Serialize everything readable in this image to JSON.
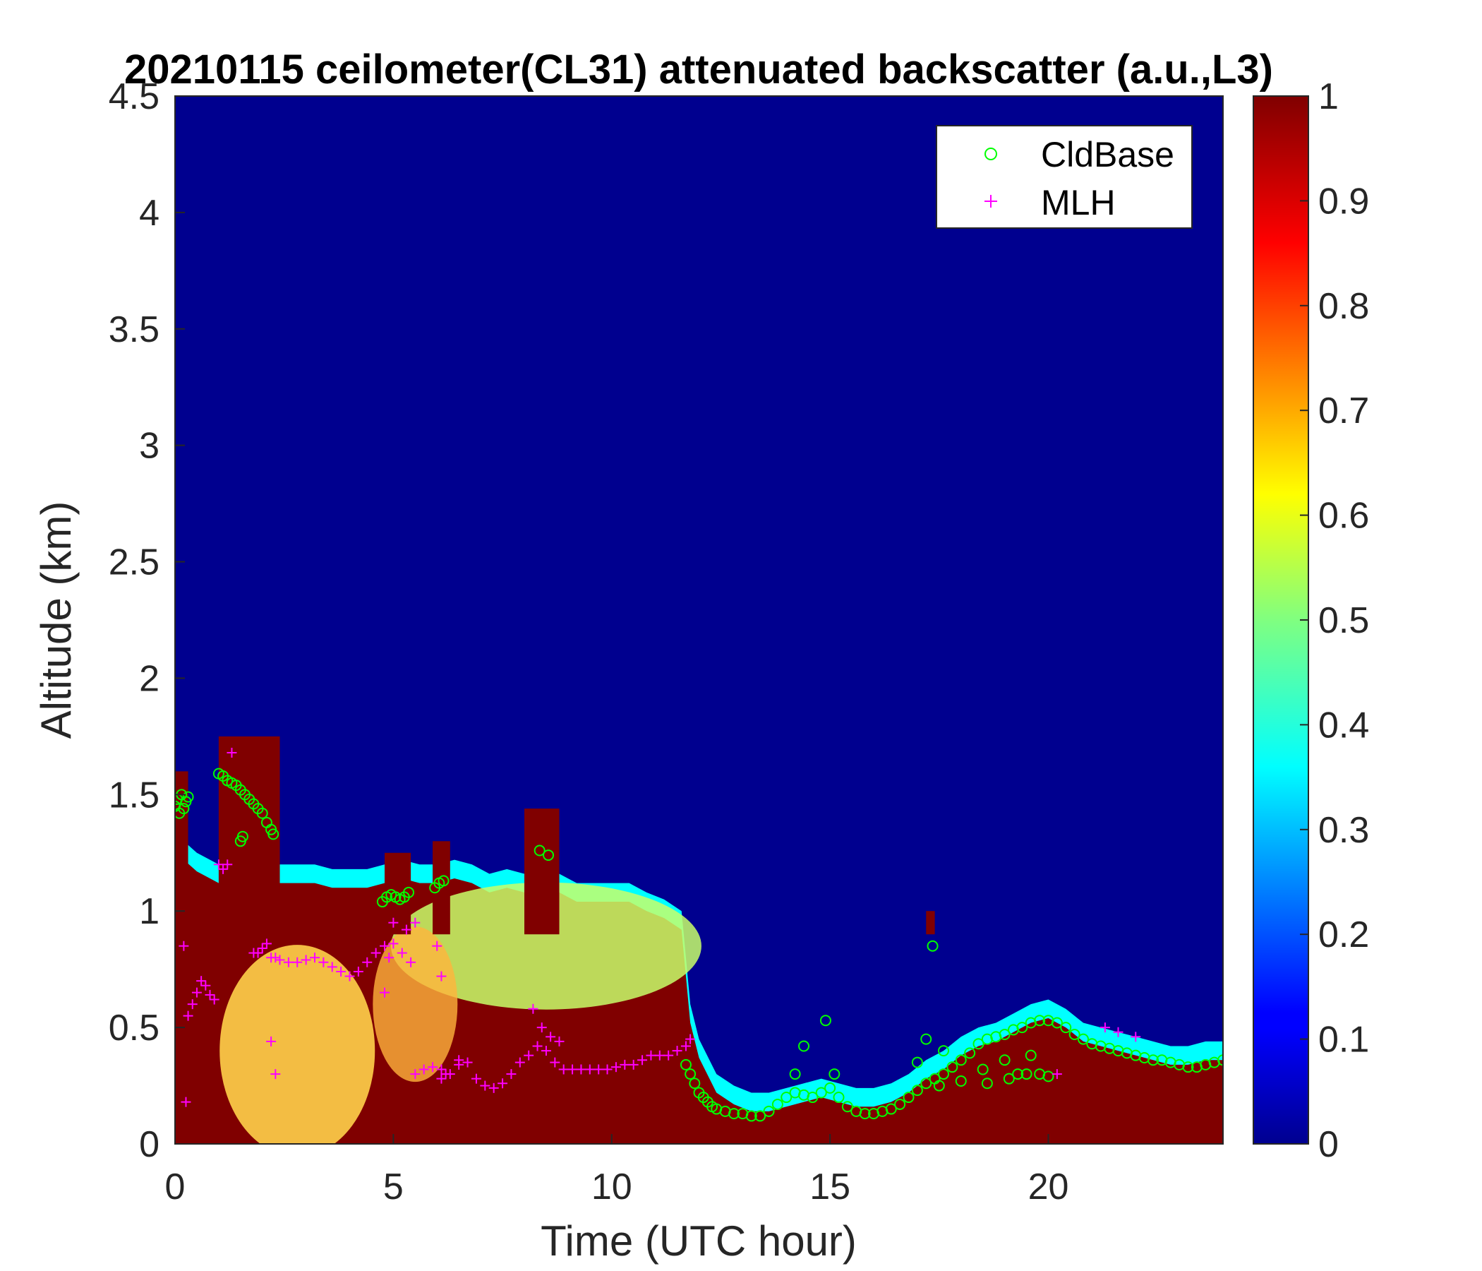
{
  "chart_data": {
    "type": "heatmap",
    "title": "20210115 ceilometer(CL31) attenuated backscatter (a.u.,L3)",
    "xlabel": "Time (UTC hour)",
    "ylabel": "Altitude (km)",
    "xlim": [
      0,
      24
    ],
    "ylim": [
      0,
      4.5
    ],
    "xticks": [
      "0",
      "5",
      "10",
      "15",
      "20"
    ],
    "yticks": [
      "0",
      "0.5",
      "1",
      "1.5",
      "2",
      "2.5",
      "3",
      "3.5",
      "4",
      "4.5"
    ],
    "colorbar": {
      "colormap": "jet",
      "range": [
        0,
        1
      ],
      "ticks": [
        "0",
        "0.1",
        "0.2",
        "0.3",
        "0.4",
        "0.5",
        "0.6",
        "0.7",
        "0.8",
        "0.9",
        "1"
      ]
    },
    "legend": {
      "placement": "top-right",
      "entries": [
        {
          "name": "CldBase",
          "marker": "circle",
          "color": "#00ff00"
        },
        {
          "name": "MLH",
          "marker": "plus",
          "color": "#ff00ff"
        }
      ]
    },
    "layer_top_km": {
      "x": [
        0,
        0.2,
        0.5,
        0.8,
        1.0,
        1.3,
        1.6,
        2.0,
        2.4,
        2.8,
        3.2,
        3.6,
        4.0,
        4.4,
        4.8,
        5.2,
        5.6,
        6.0,
        6.4,
        6.8,
        7.2,
        7.6,
        8.0,
        8.4,
        8.8,
        9.2,
        9.6,
        10.0,
        10.4,
        10.8,
        11.2,
        11.6,
        11.8,
        12.0,
        12.4,
        12.8,
        13.2,
        13.6,
        14.0,
        14.4,
        14.8,
        15.2,
        15.6,
        16.0,
        16.4,
        16.8,
        17.2,
        17.6,
        18.0,
        18.4,
        18.8,
        19.2,
        19.6,
        20.0,
        20.4,
        20.8,
        21.2,
        21.6,
        22.0,
        22.4,
        22.8,
        23.2,
        23.6,
        24.0
      ],
      "y": [
        1.3,
        1.3,
        1.25,
        1.22,
        1.2,
        1.22,
        1.22,
        1.22,
        1.2,
        1.2,
        1.2,
        1.18,
        1.18,
        1.18,
        1.2,
        1.22,
        1.2,
        1.2,
        1.22,
        1.2,
        1.16,
        1.18,
        1.16,
        1.16,
        1.16,
        1.12,
        1.12,
        1.12,
        1.12,
        1.08,
        1.05,
        1.0,
        0.6,
        0.45,
        0.3,
        0.25,
        0.22,
        0.22,
        0.24,
        0.26,
        0.28,
        0.26,
        0.24,
        0.24,
        0.26,
        0.3,
        0.36,
        0.4,
        0.46,
        0.5,
        0.52,
        0.56,
        0.6,
        0.62,
        0.58,
        0.52,
        0.5,
        0.48,
        0.46,
        0.44,
        0.42,
        0.42,
        0.44,
        0.44
      ]
    },
    "cloud_tops": [
      {
        "x0": 0,
        "x1": 0.3,
        "top": 1.6
      },
      {
        "x0": 1.0,
        "x1": 2.4,
        "top": 1.75
      },
      {
        "x0": 4.8,
        "x1": 5.4,
        "top": 1.25
      },
      {
        "x0": 5.9,
        "x1": 6.3,
        "top": 1.3
      },
      {
        "x0": 8.0,
        "x1": 8.8,
        "top": 1.44
      },
      {
        "x0": 17.2,
        "x1": 17.4,
        "top": 1.0
      }
    ],
    "series": [
      {
        "name": "CldBase",
        "x": [
          0.0,
          0.05,
          0.1,
          0.15,
          0.2,
          0.25,
          0.3,
          1.0,
          1.1,
          1.2,
          1.3,
          1.4,
          1.5,
          1.6,
          1.7,
          1.8,
          1.9,
          2.0,
          2.1,
          2.2,
          2.25,
          1.5,
          1.55,
          4.75,
          4.85,
          4.95,
          5.05,
          5.15,
          5.25,
          5.35,
          5.95,
          6.05,
          6.15,
          8.35,
          8.55,
          11.7,
          11.8,
          11.9,
          12.0,
          12.1,
          12.2,
          12.3,
          12.4,
          12.6,
          12.8,
          13.0,
          13.2,
          13.4,
          13.6,
          13.8,
          14.0,
          14.2,
          14.4,
          14.6,
          14.8,
          15.0,
          15.2,
          15.4,
          15.6,
          15.8,
          16.0,
          16.2,
          16.4,
          16.6,
          16.8,
          17.0,
          17.2,
          17.35,
          17.4,
          17.6,
          17.8,
          18.0,
          18.2,
          18.4,
          18.6,
          18.8,
          19.0,
          19.2,
          19.4,
          19.6,
          19.8,
          20.0,
          20.2,
          20.4,
          20.6,
          20.8,
          21.0,
          21.2,
          21.4,
          21.6,
          21.8,
          22.0,
          22.2,
          22.4,
          22.6,
          22.8,
          23.0,
          23.2,
          23.4,
          23.6,
          23.8,
          24.0,
          14.2,
          14.4,
          14.9,
          15.1,
          17.0,
          17.2,
          17.6,
          18.5,
          19.0,
          19.3,
          19.6,
          19.8,
          20.0,
          17.5,
          18.0,
          18.6,
          19.1,
          19.5
        ],
        "y": [
          1.45,
          1.48,
          1.42,
          1.5,
          1.44,
          1.47,
          1.49,
          1.59,
          1.58,
          1.56,
          1.55,
          1.54,
          1.52,
          1.5,
          1.48,
          1.46,
          1.44,
          1.42,
          1.38,
          1.35,
          1.33,
          1.3,
          1.32,
          1.04,
          1.06,
          1.07,
          1.06,
          1.05,
          1.06,
          1.08,
          1.1,
          1.12,
          1.13,
          1.26,
          1.24,
          0.34,
          0.3,
          0.26,
          0.22,
          0.2,
          0.18,
          0.16,
          0.15,
          0.14,
          0.13,
          0.13,
          0.12,
          0.12,
          0.14,
          0.17,
          0.2,
          0.22,
          0.21,
          0.2,
          0.22,
          0.24,
          0.2,
          0.16,
          0.14,
          0.13,
          0.13,
          0.14,
          0.15,
          0.17,
          0.2,
          0.23,
          0.26,
          0.85,
          0.28,
          0.3,
          0.33,
          0.36,
          0.39,
          0.43,
          0.45,
          0.46,
          0.47,
          0.49,
          0.5,
          0.52,
          0.53,
          0.53,
          0.52,
          0.5,
          0.47,
          0.45,
          0.43,
          0.42,
          0.41,
          0.4,
          0.39,
          0.38,
          0.37,
          0.36,
          0.36,
          0.35,
          0.34,
          0.33,
          0.33,
          0.34,
          0.35,
          0.36,
          0.3,
          0.42,
          0.53,
          0.3,
          0.35,
          0.45,
          0.4,
          0.32,
          0.36,
          0.3,
          0.38,
          0.3,
          0.29,
          0.25,
          0.27,
          0.26,
          0.28,
          0.3
        ]
      },
      {
        "name": "MLH",
        "x": [
          0.2,
          0.3,
          0.4,
          0.5,
          0.6,
          0.7,
          0.8,
          0.9,
          1.0,
          1.1,
          1.2,
          1.3,
          1.8,
          1.9,
          2.0,
          2.1,
          2.2,
          2.3,
          2.4,
          2.6,
          2.8,
          3.0,
          3.2,
          3.4,
          3.6,
          3.8,
          4.0,
          4.2,
          4.4,
          4.6,
          4.8,
          5.0,
          5.2,
          5.4,
          2.2,
          2.3,
          0.25,
          4.8,
          4.9,
          5.0,
          5.3,
          5.5,
          6.0,
          6.1,
          5.5,
          5.7,
          5.9,
          6.1,
          6.3,
          6.5,
          6.7,
          6.9,
          7.1,
          7.3,
          7.5,
          7.7,
          7.9,
          8.1,
          8.3,
          8.5,
          8.7,
          8.9,
          9.1,
          9.3,
          9.5,
          9.7,
          9.9,
          10.1,
          10.3,
          10.5,
          10.7,
          10.9,
          11.1,
          11.3,
          11.5,
          11.7,
          11.8,
          8.2,
          8.4,
          8.6,
          8.8,
          6.1,
          6.2,
          6.5,
          20.2,
          21.3,
          21.6,
          22.0
        ],
        "y": [
          0.85,
          0.55,
          0.6,
          0.65,
          0.7,
          0.68,
          0.64,
          0.62,
          1.2,
          1.18,
          1.2,
          1.68,
          0.82,
          0.82,
          0.84,
          0.86,
          0.8,
          0.8,
          0.79,
          0.78,
          0.78,
          0.79,
          0.8,
          0.78,
          0.76,
          0.74,
          0.72,
          0.74,
          0.78,
          0.82,
          0.85,
          0.86,
          0.82,
          0.78,
          0.44,
          0.3,
          0.18,
          0.65,
          0.8,
          0.95,
          0.92,
          0.95,
          0.85,
          0.72,
          0.3,
          0.32,
          0.33,
          0.32,
          0.3,
          0.34,
          0.35,
          0.28,
          0.25,
          0.24,
          0.26,
          0.3,
          0.35,
          0.38,
          0.42,
          0.4,
          0.35,
          0.32,
          0.32,
          0.32,
          0.32,
          0.32,
          0.32,
          0.33,
          0.34,
          0.34,
          0.36,
          0.38,
          0.38,
          0.38,
          0.4,
          0.42,
          0.45,
          0.58,
          0.5,
          0.46,
          0.44,
          0.28,
          0.3,
          0.36,
          0.3,
          0.5,
          0.48,
          0.46
        ]
      }
    ]
  }
}
